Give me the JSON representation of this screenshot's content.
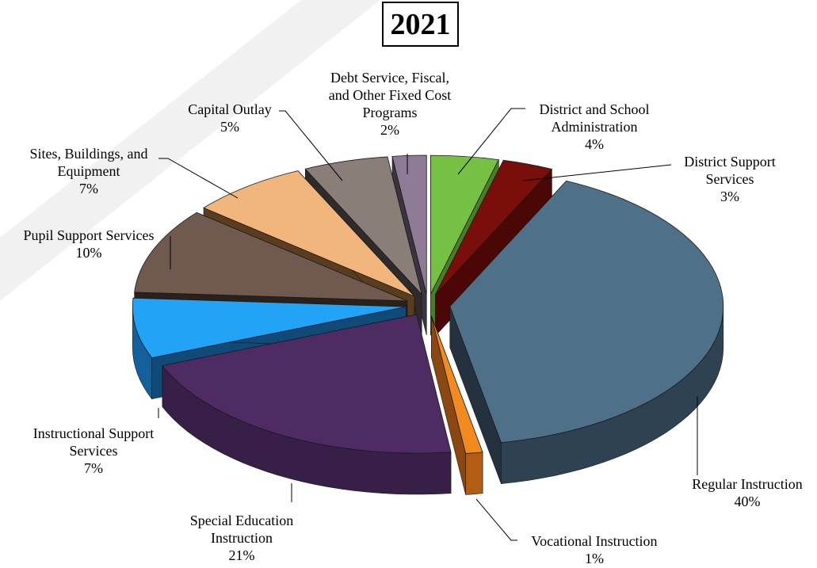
{
  "chart_data": {
    "type": "pie",
    "title": "2021",
    "slices": [
      {
        "label": "District and School Administration",
        "label_lines": [
          "District and School",
          "Administration"
        ],
        "pct_text": "4%",
        "value": 4,
        "color": "#76c043",
        "side": "#4a7d28",
        "rim": "#5e9c33"
      },
      {
        "label": "District Support Services",
        "label_lines": [
          "District Support",
          "Services"
        ],
        "pct_text": "3%",
        "value": 3,
        "color": "#7a0e0a",
        "side": "#4a0705",
        "rim": "#5c0906"
      },
      {
        "label": "Regular Instruction",
        "label_lines": [
          "Regular Instruction"
        ],
        "pct_text": "40%",
        "value": 40,
        "color": "#4e7088",
        "side": "#24323f",
        "rim": "#2f4252"
      },
      {
        "label": "Vocational Instruction",
        "label_lines": [
          "Vocational Instruction"
        ],
        "pct_text": "1%",
        "value": 1,
        "color": "#f28b1f",
        "side": "#8a4710",
        "rim": "#b35d14"
      },
      {
        "label": "Special Education Instruction",
        "label_lines": [
          "Special Education",
          "Instruction"
        ],
        "pct_text": "21%",
        "value": 21,
        "color": "#4f2b63",
        "side": "#2b1838",
        "rim": "#371f48"
      },
      {
        "label": "Instructional Support Services",
        "label_lines": [
          "Instructional Support",
          "Services"
        ],
        "pct_text": "7%",
        "value": 7,
        "color": "#22a3f5",
        "side": "#0f4a78",
        "rim": "#13609c"
      },
      {
        "label": "Pupil Support Services",
        "label_lines": [
          "Pupil Support Services"
        ],
        "pct_text": "10%",
        "value": 10,
        "color": "#705a50",
        "side": "#2a211d",
        "rim": "#3b302a"
      },
      {
        "label": "Sites, Buildings, and Equipment",
        "label_lines": [
          "Sites, Buildings,  and",
          "Equipment"
        ],
        "pct_text": "7%",
        "value": 7,
        "color": "#f2b57c",
        "side": "#5a3d1f",
        "rim": "#7a532b"
      },
      {
        "label": "Capital Outlay",
        "label_lines": [
          "Capital Outlay"
        ],
        "pct_text": "5%",
        "value": 5,
        "color": "#8a7f78",
        "side": "#2f2b2a",
        "rim": "#403b39"
      },
      {
        "label": "Debt Service, Fiscal, and Other Fixed Cost Programs",
        "label_lines": [
          "Debt Service, Fiscal,",
          "and Other Fixed Cost",
          "Programs"
        ],
        "pct_text": "2%",
        "value": 2,
        "color": "#8e7c96",
        "side": "#3c3340",
        "rim": "#4d4252"
      }
    ]
  }
}
